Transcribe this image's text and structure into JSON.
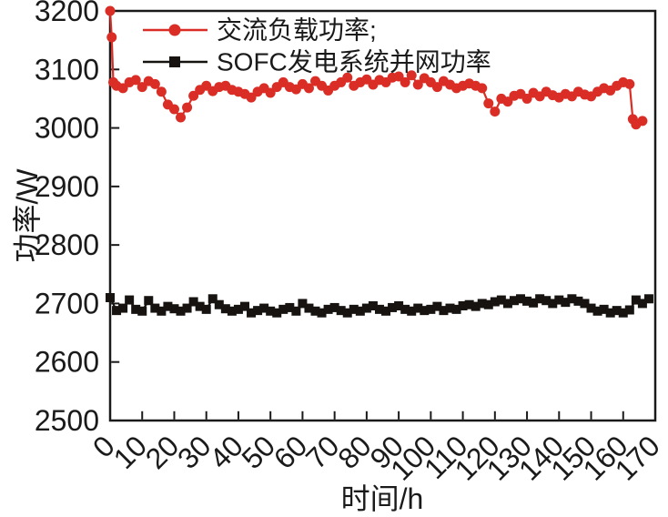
{
  "figure": {
    "background": "#ffffff",
    "axis_color": "#1a1a1a",
    "text_color": "#1a1a1a"
  },
  "chart_data": {
    "type": "line",
    "title": "",
    "xlabel": "时间/h",
    "ylabel": "功率/W",
    "xlim": [
      0,
      170
    ],
    "ylim": [
      2500,
      3200
    ],
    "xticks": [
      0,
      10,
      20,
      30,
      40,
      50,
      60,
      70,
      80,
      90,
      100,
      110,
      120,
      130,
      140,
      150,
      160,
      170
    ],
    "yticks": [
      2500,
      2600,
      2700,
      2800,
      2900,
      3000,
      3100,
      3200
    ],
    "grid": false,
    "legend_position": "top-left-inside",
    "tick_label_rotation": -45,
    "series": [
      {
        "name": "交流负载功率;",
        "color": "#d92d26",
        "marker": "circle",
        "x": [
          0,
          0.5,
          1,
          2,
          4,
          6,
          8,
          10,
          12,
          14,
          16,
          18,
          20,
          22,
          24,
          26,
          28,
          30,
          32,
          34,
          36,
          38,
          40,
          42,
          44,
          46,
          48,
          50,
          52,
          54,
          56,
          58,
          60,
          62,
          64,
          66,
          68,
          70,
          72,
          74,
          76,
          78,
          80,
          82,
          84,
          86,
          88,
          90,
          92,
          94,
          96,
          98,
          100,
          102,
          104,
          106,
          108,
          110,
          112,
          114,
          116,
          118,
          120,
          122,
          124,
          126,
          128,
          130,
          132,
          134,
          136,
          138,
          140,
          142,
          144,
          146,
          148,
          150,
          152,
          154,
          156,
          158,
          160,
          162,
          163,
          164,
          166
        ],
        "y": [
          3200,
          3155,
          3078,
          3072,
          3068,
          3078,
          3082,
          3070,
          3080,
          3075,
          3062,
          3040,
          3032,
          3018,
          3035,
          3055,
          3065,
          3072,
          3063,
          3070,
          3072,
          3065,
          3062,
          3058,
          3052,
          3062,
          3068,
          3060,
          3070,
          3078,
          3070,
          3066,
          3075,
          3068,
          3080,
          3072,
          3064,
          3072,
          3078,
          3086,
          3072,
          3078,
          3083,
          3074,
          3082,
          3078,
          3086,
          3088,
          3078,
          3090,
          3074,
          3085,
          3078,
          3070,
          3080,
          3074,
          3068,
          3072,
          3076,
          3072,
          3068,
          3042,
          3028,
          3050,
          3045,
          3055,
          3058,
          3050,
          3060,
          3054,
          3062,
          3056,
          3052,
          3058,
          3054,
          3062,
          3057,
          3054,
          3062,
          3068,
          3064,
          3072,
          3078,
          3075,
          3015,
          3006,
          3012
        ]
      },
      {
        "name": "SOFC发电系统并网功率",
        "color": "#161310",
        "marker": "square",
        "x": [
          0,
          2,
          4,
          6,
          8,
          10,
          12,
          14,
          16,
          18,
          20,
          22,
          24,
          26,
          28,
          30,
          32,
          34,
          36,
          38,
          40,
          42,
          44,
          46,
          48,
          50,
          52,
          54,
          56,
          58,
          60,
          62,
          64,
          66,
          68,
          70,
          72,
          74,
          76,
          78,
          80,
          82,
          84,
          86,
          88,
          90,
          92,
          94,
          96,
          98,
          100,
          102,
          104,
          106,
          108,
          110,
          112,
          114,
          116,
          118,
          120,
          122,
          124,
          126,
          128,
          130,
          132,
          134,
          136,
          138,
          140,
          142,
          144,
          146,
          148,
          150,
          152,
          154,
          156,
          158,
          160,
          162,
          164,
          166,
          168
        ],
        "y": [
          2710,
          2688,
          2692,
          2706,
          2690,
          2687,
          2705,
          2692,
          2687,
          2695,
          2691,
          2687,
          2692,
          2703,
          2695,
          2690,
          2708,
          2698,
          2691,
          2687,
          2690,
          2695,
          2684,
          2688,
          2692,
          2687,
          2684,
          2690,
          2693,
          2687,
          2700,
          2692,
          2687,
          2684,
          2690,
          2693,
          2688,
          2684,
          2690,
          2687,
          2692,
          2696,
          2690,
          2687,
          2693,
          2696,
          2690,
          2687,
          2692,
          2688,
          2690,
          2695,
          2688,
          2692,
          2690,
          2696,
          2698,
          2695,
          2700,
          2698,
          2703,
          2706,
          2700,
          2705,
          2708,
          2704,
          2701,
          2708,
          2705,
          2700,
          2706,
          2702,
          2708,
          2704,
          2700,
          2692,
          2687,
          2690,
          2684,
          2688,
          2684,
          2689,
          2706,
          2700,
          2708
        ]
      }
    ]
  }
}
